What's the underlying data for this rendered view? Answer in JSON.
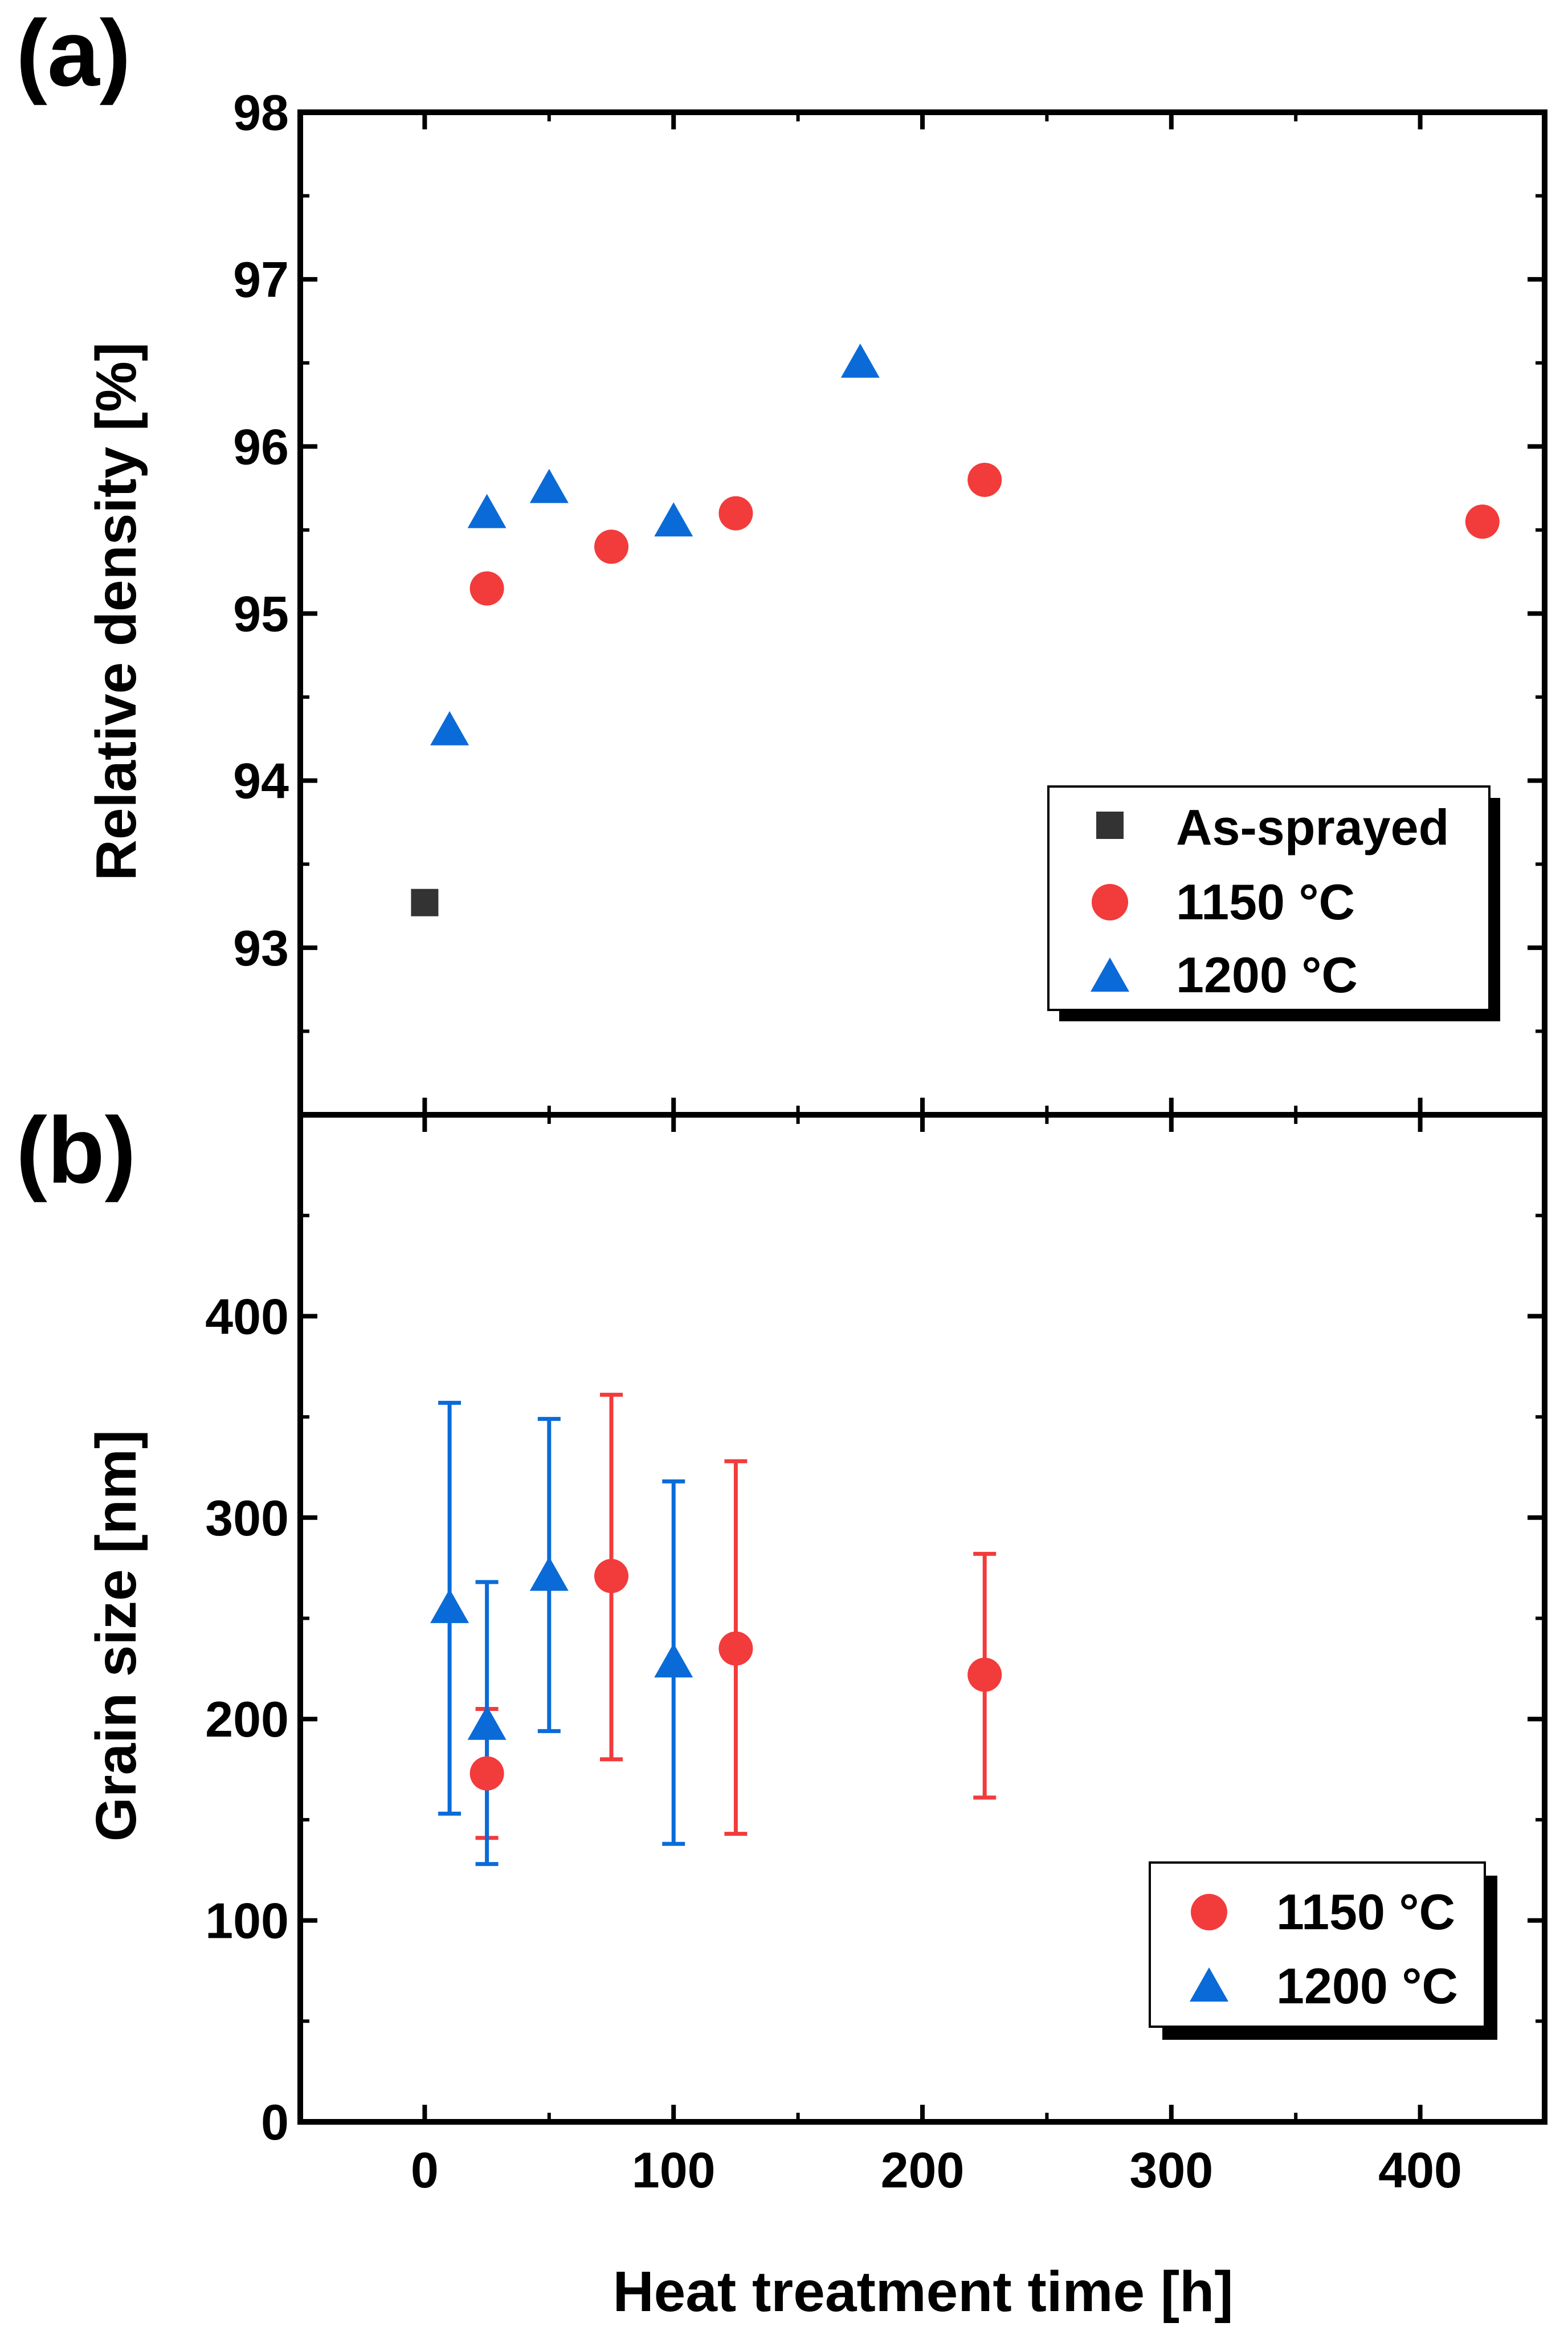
{
  "figure": {
    "shared_xlabel": "Heat treatment time [h]"
  },
  "chart_data": [
    {
      "type": "scatter",
      "panel_label": "(a)",
      "title": "",
      "xlabel": "",
      "ylabel": "Relative density [%]",
      "xlim": [
        -50,
        450
      ],
      "ylim": [
        92,
        98
      ],
      "x_ticks": [
        0,
        100,
        200,
        300,
        400
      ],
      "x_tick_labels_shown": false,
      "y_ticks": [
        93,
        94,
        95,
        96,
        97,
        98
      ],
      "y_tick_labels": [
        "93",
        "94",
        "95",
        "96",
        "97",
        "98"
      ],
      "grid": false,
      "legend_position": "bottom-right",
      "series": [
        {
          "name": "As-sprayed",
          "marker": "square",
          "color": "#333333",
          "x": [
            0
          ],
          "y": [
            93.27
          ]
        },
        {
          "name": "1150 °C",
          "marker": "circle",
          "color": "#f23b3b",
          "x": [
            25,
            75,
            125,
            225,
            425
          ],
          "y": [
            95.15,
            95.4,
            95.6,
            95.8,
            95.55
          ]
        },
        {
          "name": "1200 °C",
          "marker": "triangle",
          "color": "#0a6bd8",
          "x": [
            10,
            25,
            50,
            100,
            175
          ],
          "y": [
            94.3,
            95.6,
            95.75,
            95.55,
            96.5
          ]
        }
      ]
    },
    {
      "type": "scatter",
      "panel_label": "(b)",
      "title": "",
      "xlabel": "Heat treatment time [h]",
      "ylabel": "Grain size [nm]",
      "xlim": [
        -50,
        450
      ],
      "ylim": [
        0,
        500
      ],
      "x_ticks": [
        0,
        100,
        200,
        300,
        400
      ],
      "x_tick_labels": [
        "0",
        "100",
        "200",
        "300",
        "400"
      ],
      "y_ticks": [
        0,
        100,
        200,
        300,
        400
      ],
      "y_tick_labels": [
        "0",
        "100",
        "200",
        "300",
        "400"
      ],
      "grid": false,
      "legend_position": "bottom-right",
      "series": [
        {
          "name": "1150 °C",
          "marker": "circle",
          "color": "#f23b3b",
          "x": [
            25,
            75,
            125,
            225
          ],
          "y": [
            173,
            271,
            235,
            222
          ],
          "err_low": [
            141,
            180,
            143,
            161
          ],
          "err_high": [
            205,
            361,
            328,
            282
          ]
        },
        {
          "name": "1200 °C",
          "marker": "triangle",
          "color": "#0a6bd8",
          "x": [
            10,
            25,
            50,
            100
          ],
          "y": [
            255,
            197,
            271,
            228
          ],
          "err_low": [
            153,
            128,
            194,
            138
          ],
          "err_high": [
            357,
            268,
            349,
            318
          ]
        }
      ]
    }
  ]
}
